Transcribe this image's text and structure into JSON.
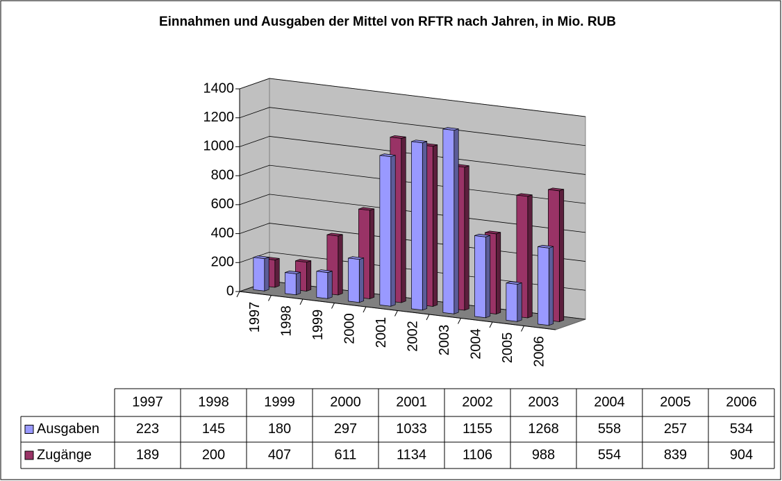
{
  "chart_data": {
    "type": "bar3d",
    "title": "Einnahmen und Ausgaben der Mittel von RFTR nach Jahren, in Mio. RUB",
    "categories": [
      "1997",
      "1998",
      "1999",
      "2000",
      "2001",
      "2002",
      "2003",
      "2004",
      "2005",
      "2006"
    ],
    "series": [
      {
        "name": "Ausgaben",
        "color": "#9999ff",
        "values": [
          223,
          145,
          180,
          297,
          1033,
          1155,
          1268,
          558,
          257,
          534
        ]
      },
      {
        "name": "Zugänge",
        "color": "#993366",
        "values": [
          189,
          200,
          407,
          611,
          1134,
          1106,
          988,
          554,
          839,
          904
        ]
      }
    ],
    "ylim": [
      0,
      1400
    ],
    "yticks": [
      0,
      200,
      400,
      600,
      800,
      1000,
      1200,
      1400
    ],
    "grid": true,
    "data_table": true
  }
}
